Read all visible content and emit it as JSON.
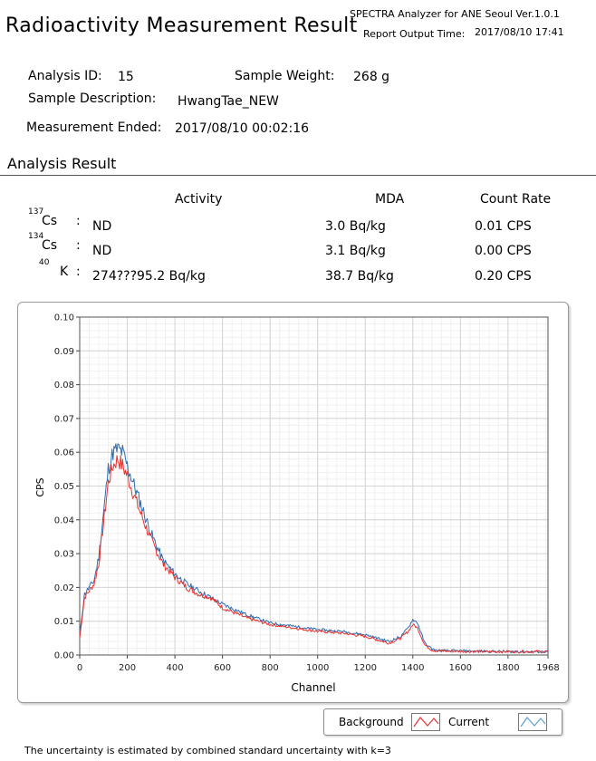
{
  "header": {
    "title": "Radioactivity Measurement Result",
    "app_name": "SPECTRA Analyzer for ANE Seoul Ver.1.0.1",
    "output_time_label": "Report Output Time:",
    "output_time": "2017/08/10 17:41"
  },
  "info": {
    "analysis_id_label": "Analysis ID:",
    "analysis_id": "15",
    "sample_weight_label": "Sample Weight:",
    "sample_weight": "268 g",
    "sample_description_label": "Sample Description:",
    "sample_description": "HwangTae_NEW",
    "measurement_ended_label": "Measurement Ended:",
    "measurement_ended": "2017/08/10 00:02:16"
  },
  "analysis": {
    "section_title": "Analysis Result",
    "headers": {
      "activity": "Activity",
      "mda": "MDA",
      "count_rate": "Count Rate"
    },
    "rows": [
      {
        "mass": "137",
        "symbol": "Cs",
        "activity": "ND",
        "mda": "3.0 Bq/kg",
        "count_rate": "0.01 CPS"
      },
      {
        "mass": "134",
        "symbol": "Cs",
        "activity": "ND",
        "mda": "3.1 Bq/kg",
        "count_rate": "0.00 CPS"
      },
      {
        "mass": "40",
        "symbol": "K",
        "activity": "274???95.2 Bq/kg",
        "mda": "38.7 Bq/kg",
        "count_rate": "0.20 CPS"
      }
    ]
  },
  "chart_data": {
    "type": "line",
    "xlabel": "Channel",
    "ylabel": "CPS",
    "xlim": [
      0,
      1968
    ],
    "ylim": [
      0,
      0.1
    ],
    "x_ticks": [
      0,
      200,
      400,
      600,
      800,
      1000,
      1200,
      1400,
      1600,
      1800,
      1968
    ],
    "y_ticks": [
      "0.00",
      "0.01",
      "0.02",
      "0.03",
      "0.04",
      "0.05",
      "0.06",
      "0.07",
      "0.08",
      "0.09",
      "0.10"
    ],
    "grid": true,
    "legend_position": "bottom-right, below plot",
    "series": [
      {
        "name": "Background",
        "color": "#e8322f",
        "x": [
          0,
          20,
          40,
          60,
          80,
          100,
          120,
          140,
          160,
          180,
          200,
          220,
          250,
          300,
          350,
          400,
          450,
          500,
          550,
          600,
          700,
          800,
          900,
          1000,
          1100,
          1200,
          1300,
          1350,
          1380,
          1400,
          1420,
          1450,
          1480,
          1500,
          1600,
          1700,
          1800,
          1968
        ],
        "values": [
          0.005,
          0.017,
          0.019,
          0.021,
          0.027,
          0.039,
          0.051,
          0.056,
          0.058,
          0.056,
          0.053,
          0.049,
          0.043,
          0.034,
          0.027,
          0.023,
          0.02,
          0.018,
          0.017,
          0.014,
          0.011,
          0.009,
          0.008,
          0.007,
          0.0065,
          0.0055,
          0.0035,
          0.005,
          0.007,
          0.009,
          0.008,
          0.003,
          0.0015,
          0.0012,
          0.0011,
          0.001,
          0.001,
          0.001
        ]
      },
      {
        "name": "Current",
        "color": "#2e6db0",
        "x": [
          0,
          20,
          40,
          60,
          80,
          100,
          120,
          140,
          160,
          180,
          200,
          220,
          250,
          300,
          350,
          400,
          450,
          500,
          550,
          600,
          700,
          800,
          900,
          1000,
          1100,
          1200,
          1300,
          1350,
          1380,
          1400,
          1420,
          1450,
          1480,
          1500,
          1600,
          1700,
          1800,
          1968
        ],
        "values": [
          0.006,
          0.018,
          0.02,
          0.022,
          0.029,
          0.042,
          0.055,
          0.06,
          0.061,
          0.06,
          0.056,
          0.052,
          0.046,
          0.036,
          0.028,
          0.024,
          0.021,
          0.019,
          0.017,
          0.015,
          0.012,
          0.0095,
          0.0085,
          0.0075,
          0.007,
          0.006,
          0.004,
          0.0055,
          0.008,
          0.0105,
          0.0095,
          0.0035,
          0.0018,
          0.0013,
          0.0012,
          0.0011,
          0.001,
          0.001
        ]
      }
    ]
  },
  "legend": {
    "background_label": "Background",
    "current_label": "Current"
  },
  "footnote": "The uncertainty is estimated by combined standard uncertainty with k=3"
}
